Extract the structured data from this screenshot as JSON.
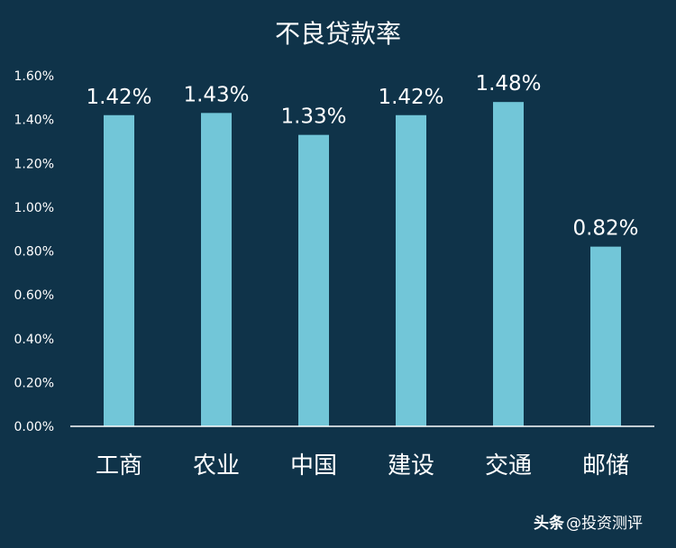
{
  "colors": {
    "background": "#0f3349",
    "bar": "#72c6d8",
    "axis": "#ffffff",
    "text": "#ffffff"
  },
  "watermark": {
    "brand": "头条",
    "account": "@投资测评"
  },
  "chart_data": {
    "type": "bar",
    "title": "不良贷款率",
    "xlabel": "",
    "ylabel": "",
    "categories": [
      "工商",
      "农业",
      "中国",
      "建设",
      "交通",
      "邮储"
    ],
    "series": [
      {
        "values": [
          1.42,
          1.43,
          1.33,
          1.42,
          1.48,
          0.82
        ]
      }
    ],
    "data_labels": [
      "1.42%",
      "1.43%",
      "1.33%",
      "1.42%",
      "1.48%",
      "0.82%"
    ],
    "ylim": [
      0,
      1.6
    ],
    "y_ticks": [
      0,
      0.2,
      0.4,
      0.6,
      0.8,
      1.0,
      1.2,
      1.4,
      1.6
    ],
    "y_tick_labels": [
      "0.00%",
      "0.20%",
      "0.40%",
      "0.60%",
      "0.80%",
      "1.00%",
      "1.20%",
      "1.40%",
      "1.60%"
    ],
    "grid": false,
    "legend": "none"
  }
}
